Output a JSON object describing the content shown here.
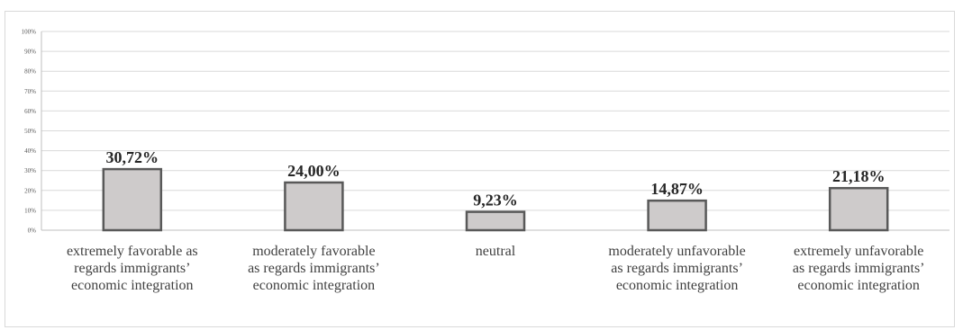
{
  "chart_data": {
    "type": "bar",
    "categories": [
      "extremely favorable as regards immigrants’ economic integration",
      "moderately favorable as regards immigrants’ economic integration",
      "neutral",
      "moderately unfavorable as regards immigrants’ economic integration",
      "extremely unfavorable as regards immigrants’ economic integration"
    ],
    "category_lines": [
      [
        "extremely favorable as",
        "regards immigrants’",
        "economic integration"
      ],
      [
        "moderately favorable",
        "as regards immigrants’",
        "economic integration"
      ],
      [
        "neutral"
      ],
      [
        "moderately unfavorable",
        "as regards immigrants’",
        "economic integration"
      ],
      [
        "extremely unfavorable",
        "as regards immigrants’",
        "economic integration"
      ]
    ],
    "values": [
      30.72,
      24.0,
      9.23,
      14.87,
      21.18
    ],
    "data_labels": [
      "30,72%",
      "24,00%",
      "9,23%",
      "14,87%",
      "21,18%"
    ],
    "yticks": [
      "0%",
      "10%",
      "20%",
      "30%",
      "40%",
      "50%",
      "60%",
      "70%",
      "80%",
      "90%",
      "100%"
    ],
    "ylim": [
      0,
      100
    ],
    "grid": true,
    "title": "",
    "xlabel": "",
    "ylabel": "",
    "colors": {
      "bar_fill": "#cecbcb",
      "bar_stroke": "#595959",
      "grid": "#d9d9d9",
      "axis": "#bfbfbf"
    }
  }
}
